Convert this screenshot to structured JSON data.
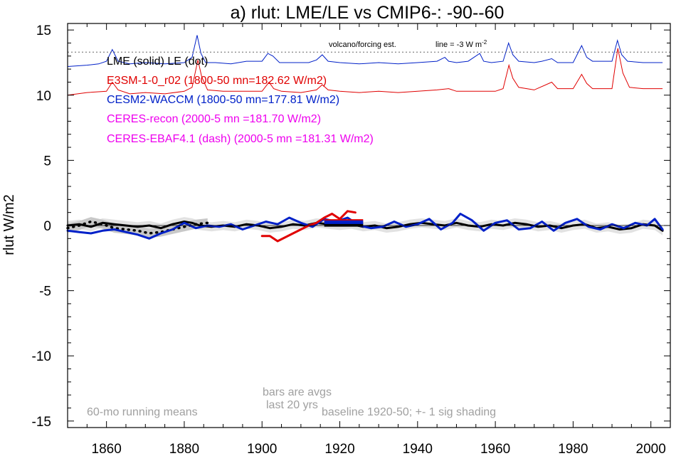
{
  "chart_data": {
    "type": "line",
    "title": "a) rlut: LME/LE vs CMIP6-: -90--60",
    "xlabel": "",
    "ylabel": "rlut W/m2",
    "xlim": [
      1850,
      2005
    ],
    "ylim": [
      -15.5,
      15.5
    ],
    "x_ticks": [
      1860,
      1880,
      1900,
      1920,
      1940,
      1960,
      1980,
      2000
    ],
    "y_ticks": [
      15,
      10,
      5,
      0,
      -5,
      -10,
      -15
    ],
    "y_tick_labels": [
      "15",
      "10",
      "5",
      "0",
      "-5",
      "-10",
      "-15"
    ],
    "grid": false,
    "legend": {
      "placement": "top-left",
      "entries": [
        {
          "text": "LME (solid)   LE (dot)",
          "color": "#000000"
        },
        {
          "text": "E3SM-1-0_r02 (1800-50 mn=182.62 W/m2)",
          "color": "#e00000"
        },
        {
          "text": "CESM2-WACCM (1800-50 mn=177.81 W/m2)",
          "color": "#0020c8"
        },
        {
          "text": "CERES-recon (2000-5 mn =181.70 W/m2)",
          "color": "#ee00ee"
        },
        {
          "text": "CERES-EBAF4.1 (dash) (2000-5 mn =181.31 W/m2)",
          "color": "#ee00ee"
        }
      ]
    },
    "annotations": {
      "volcano_label": "volcano/forcing est.",
      "line_label": "line = -3 W m",
      "line_label_sup": "-2",
      "running_means": "60-mo running means",
      "bars_line1": "bars are avgs",
      "bars_line2": "last 20 yrs",
      "baseline": "baseline 1920-50; +- 1 sig shading"
    },
    "reference_line_y": 13.3,
    "volcano_blue": {
      "baseline": 12.3,
      "color": "#0020c8",
      "x": [
        1850,
        1855,
        1858,
        1860,
        1861.5,
        1863,
        1866,
        1870,
        1875,
        1880,
        1882,
        1883.3,
        1884.3,
        1885.5,
        1888,
        1892,
        1896,
        1900,
        1901.5,
        1902.8,
        1904.5,
        1908,
        1912,
        1914,
        1915.5,
        1917,
        1920,
        1925,
        1930,
        1935,
        1940,
        1945,
        1947,
        1948,
        1950,
        1953,
        1956,
        1957,
        1959,
        1962,
        1963.4,
        1964.5,
        1966,
        1970,
        1972,
        1974.5,
        1976,
        1980,
        1982.2,
        1983.5,
        1985,
        1990,
        1991.4,
        1992.5,
        1994,
        1998,
        2003
      ],
      "y": [
        12.2,
        12.3,
        12.4,
        12.6,
        13.5,
        12.6,
        12.4,
        12.5,
        12.4,
        12.5,
        12.9,
        14.6,
        13.2,
        12.5,
        12.5,
        12.4,
        12.6,
        12.6,
        13.2,
        13.0,
        12.5,
        12.5,
        12.5,
        12.7,
        13.1,
        12.6,
        12.5,
        12.4,
        12.5,
        12.4,
        12.5,
        12.6,
        12.9,
        12.6,
        12.5,
        12.6,
        13.2,
        12.6,
        12.5,
        12.6,
        14.0,
        13.1,
        12.6,
        12.5,
        12.6,
        12.8,
        12.5,
        12.5,
        13.8,
        12.9,
        12.6,
        12.6,
        14.2,
        13.1,
        12.6,
        12.5,
        12.5
      ]
    },
    "volcano_red": {
      "baseline": 10.1,
      "color": "#e00000",
      "x": [
        1850,
        1855,
        1860,
        1861.5,
        1863,
        1866,
        1870,
        1875,
        1880,
        1882,
        1883.5,
        1884.5,
        1886,
        1890,
        1895,
        1900,
        1901.8,
        1903,
        1905,
        1910,
        1912,
        1914,
        1915.5,
        1917,
        1920,
        1925,
        1930,
        1935,
        1940,
        1945,
        1948,
        1950,
        1955,
        1960,
        1962,
        1963.5,
        1964.5,
        1966,
        1970,
        1974.5,
        1976,
        1980,
        1982.2,
        1983.5,
        1985,
        1990,
        1991.5,
        1992.8,
        1994.5,
        1998,
        2003
      ],
      "y": [
        10.0,
        10.2,
        10.3,
        11.0,
        10.4,
        10.1,
        10.2,
        10.1,
        10.3,
        10.6,
        12.7,
        11.4,
        10.4,
        10.3,
        10.3,
        10.3,
        11.0,
        10.5,
        10.3,
        10.2,
        10.3,
        10.4,
        10.8,
        10.4,
        10.3,
        10.2,
        10.3,
        10.2,
        10.3,
        10.4,
        10.5,
        10.3,
        10.3,
        10.3,
        10.5,
        12.3,
        11.3,
        10.6,
        10.4,
        11.0,
        10.5,
        10.5,
        11.6,
        10.9,
        10.5,
        10.5,
        13.6,
        11.7,
        10.6,
        10.5,
        10.5
      ]
    },
    "series": [
      {
        "name": "LME",
        "color": "#000000",
        "style": "solid",
        "x": [
          1850,
          1853,
          1856,
          1859,
          1862,
          1865,
          1868,
          1871,
          1874,
          1877,
          1880,
          1882,
          1884,
          1887,
          1890,
          1893,
          1896,
          1899,
          1902,
          1905,
          1908,
          1911,
          1914,
          1917,
          1920,
          1923,
          1926,
          1929,
          1932,
          1935,
          1938,
          1941,
          1944,
          1947,
          1950,
          1953,
          1956,
          1959,
          1962,
          1965,
          1968,
          1971,
          1974,
          1977,
          1980,
          1983,
          1986,
          1989,
          1992,
          1995,
          1998,
          2001,
          2003
        ],
        "y": [
          0.0,
          0.1,
          -0.1,
          0.2,
          0.1,
          0.0,
          -0.1,
          0.0,
          -0.2,
          0.1,
          0.3,
          0.2,
          0.0,
          -0.1,
          0.0,
          -0.1,
          0.1,
          0.0,
          -0.2,
          -0.1,
          0.1,
          0.0,
          0.2,
          0.1,
          0.0,
          0.1,
          -0.1,
          0.0,
          -0.2,
          -0.1,
          0.1,
          0.2,
          0.1,
          0.0,
          0.2,
          0.0,
          -0.1,
          0.1,
          0.0,
          0.2,
          0.1,
          -0.1,
          0.0,
          -0.2,
          0.0,
          0.1,
          -0.2,
          -0.1,
          -0.3,
          -0.2,
          0.1,
          0.0,
          -0.4
        ]
      },
      {
        "name": "LE",
        "color": "#000000",
        "style": "dot",
        "x": [
          1850,
          1853,
          1856,
          1859,
          1862,
          1865,
          1868,
          1871,
          1874,
          1877,
          1880,
          1883,
          1886
        ],
        "y": [
          -0.2,
          0.0,
          0.3,
          0.1,
          -0.2,
          -0.3,
          -0.4,
          -0.6,
          -0.5,
          -0.3,
          -0.1,
          0.1,
          0.2
        ]
      },
      {
        "name": "CESM2-WACCM",
        "color": "#0020c8",
        "style": "solid",
        "x": [
          1850,
          1853,
          1856,
          1859,
          1862,
          1865,
          1868,
          1871,
          1874,
          1877,
          1880,
          1883,
          1886,
          1889,
          1892,
          1895,
          1898,
          1901,
          1904,
          1907,
          1910,
          1913,
          1916,
          1919,
          1922,
          1925,
          1928,
          1931,
          1934,
          1937,
          1940,
          1943,
          1946,
          1949,
          1951,
          1954,
          1957,
          1960,
          1963,
          1966,
          1969,
          1972,
          1975,
          1978,
          1981,
          1984,
          1987,
          1990,
          1993,
          1996,
          1999,
          2001,
          2003
        ],
        "y": [
          -0.4,
          -0.5,
          -0.6,
          -0.4,
          -0.3,
          -0.5,
          -0.7,
          -1.0,
          -0.6,
          -0.3,
          0.2,
          -0.2,
          0.0,
          -0.1,
          0.1,
          -0.3,
          0.0,
          0.3,
          0.1,
          0.6,
          0.2,
          -0.1,
          0.5,
          0.3,
          0.6,
          0.0,
          -0.2,
          -0.1,
          0.3,
          -0.1,
          0.1,
          0.5,
          -0.3,
          0.2,
          0.9,
          0.4,
          -0.4,
          0.2,
          0.4,
          -0.3,
          -0.2,
          0.3,
          -0.4,
          0.2,
          0.5,
          -0.1,
          -0.3,
          0.1,
          -0.2,
          0.2,
          0.0,
          0.5,
          -0.3
        ]
      },
      {
        "name": "E3SM-1-0_r02",
        "color": "#e00000",
        "style": "solid",
        "x": [
          1900,
          1902,
          1904,
          1906,
          1908,
          1910,
          1912,
          1914,
          1916,
          1918,
          1920,
          1922,
          1924
        ],
        "y": [
          -0.8,
          -0.8,
          -1.2,
          -0.9,
          -0.6,
          -0.3,
          0.0,
          0.2,
          0.6,
          0.9,
          0.5,
          1.1,
          1.0
        ]
      }
    ],
    "bars_last20": [
      {
        "x0": 1916,
        "x1": 1926,
        "y": 0.05,
        "color": "#000000"
      },
      {
        "x0": 1916,
        "x1": 1926,
        "y": 0.35,
        "color": "#e00000"
      },
      {
        "x0": 1916,
        "x1": 1926,
        "y": 0.25,
        "color": "#0020c8"
      }
    ]
  }
}
